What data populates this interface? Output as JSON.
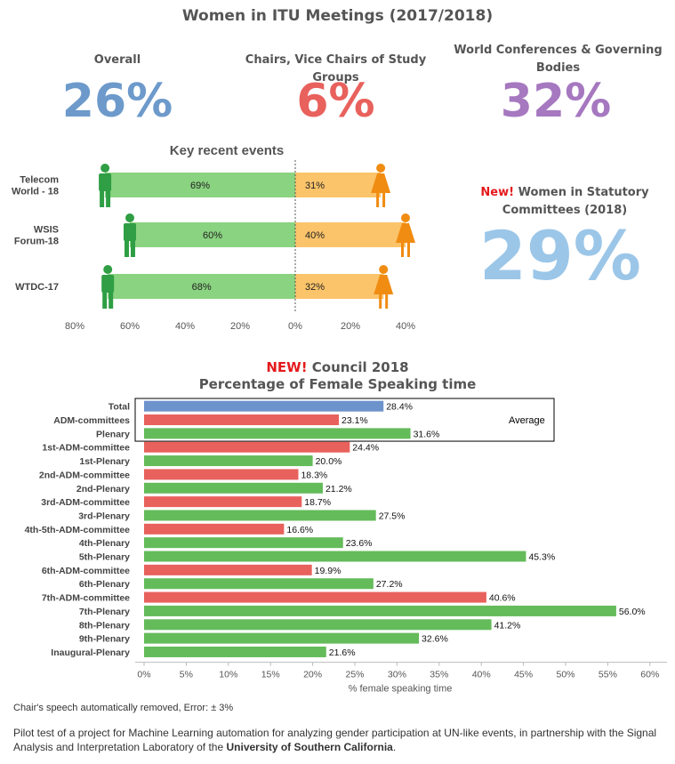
{
  "header": {
    "title": "Women in ITU Meetings (2017/2018)"
  },
  "stats": {
    "overall": {
      "label": "Overall",
      "value": "26%",
      "color": "#6d9acb"
    },
    "chairs": {
      "label": "Chairs, Vice Chairs of Study Groups",
      "value": "6%",
      "color": "#e8615c"
    },
    "world": {
      "label": "World Conferences & Governing Bodies",
      "value": "32%",
      "color": "#a678c0"
    },
    "statutory": {
      "new_tag": "New!",
      "label": "Women in Statutory Committees (2018)",
      "value": "29%",
      "color": "#9bc6e8"
    }
  },
  "events_chart": {
    "title": "Key recent events",
    "male_color": "#8ad380",
    "female_color": "#fbc46a",
    "male_icon_color": "#2f9e44",
    "female_icon_color": "#f08c12",
    "events": [
      {
        "name": "Telecom World - 18",
        "male": "69%",
        "female": "31%"
      },
      {
        "name": "WSIS Forum-18",
        "male": "60%",
        "female": "40%"
      },
      {
        "name": "WTDC-17",
        "male": "68%",
        "female": "32%"
      }
    ],
    "axis_ticks": [
      "80%",
      "60%",
      "40%",
      "20%",
      "0%",
      "20%",
      "40%"
    ]
  },
  "chart_data": [
    {
      "type": "bar",
      "title": "Key recent events",
      "orientation": "horizontal-diverging",
      "categories": [
        "Telecom World - 18",
        "WSIS Forum-18",
        "WTDC-17"
      ],
      "series": [
        {
          "values": [
            69,
            60,
            68
          ]
        },
        {
          "values": [
            31,
            40,
            32
          ]
        }
      ],
      "xlim": [
        -80,
        40
      ],
      "xticks": [
        "80%",
        "60%",
        "40%",
        "20%",
        "0%",
        "20%",
        "40%"
      ]
    },
    {
      "type": "bar",
      "orientation": "horizontal",
      "title_new": "NEW!",
      "title": "Council 2018",
      "subtitle": "Percentage of Female Speaking time",
      "xlabel": "% female speaking time",
      "xlim": [
        0,
        62
      ],
      "xticks": [
        "0%",
        "5%",
        "10%",
        "15%",
        "20%",
        "25%",
        "30%",
        "35%",
        "40%",
        "45%",
        "50%",
        "55%",
        "60%"
      ],
      "average_label": "Average",
      "categories": [
        "Total",
        "ADM-committees",
        "Plenary",
        "1st-ADM-committee",
        "1st-Plenary",
        "2nd-ADM-committee",
        "2nd-Plenary",
        "3rd-ADM-committee",
        "3rd-Plenary",
        "4th-5th-ADM-committee",
        "4th-Plenary",
        "5th-Plenary",
        "6th-ADM-committee",
        "6th-Plenary",
        "7th-ADM-committee",
        "7th-Plenary",
        "8th-Plenary",
        "9th-Plenary",
        "Inaugural-Plenary"
      ],
      "values": [
        28.4,
        23.1,
        31.6,
        24.4,
        20.0,
        18.3,
        21.2,
        18.7,
        27.5,
        16.6,
        23.6,
        45.3,
        19.9,
        27.2,
        40.6,
        56.0,
        41.2,
        32.6,
        21.6
      ],
      "value_labels": [
        "28.4%",
        "23.1%",
        "31.6%",
        "24.4%",
        "20.0%",
        "18.3%",
        "21.2%",
        "18.7%",
        "27.5%",
        "16.6%",
        "23.6%",
        "45.3%",
        "19.9%",
        "27.2%",
        "40.6%",
        "56.0%",
        "41.2%",
        "32.6%",
        "21.6%"
      ],
      "kinds": [
        "total",
        "adm",
        "plenary",
        "adm",
        "plenary",
        "adm",
        "plenary",
        "adm",
        "plenary",
        "adm",
        "plenary",
        "plenary",
        "adm",
        "plenary",
        "adm",
        "plenary",
        "plenary",
        "plenary",
        "plenary"
      ],
      "colors": {
        "total": "#6d93cc",
        "adm": "#e8615c",
        "plenary": "#64bb5a"
      }
    }
  ],
  "footer": {
    "note_prefix": "Chair's speech automatically removed, Error: ",
    "note_value": "± 3%",
    "pilot_text": "Pilot test of a project for Machine Learning automation for analyzing gender participation at UN-like events, in partnership with the Signal Analysis and Interpretation Laboratory of the ",
    "pilot_bold": "University of Southern California",
    "pilot_end": "."
  }
}
